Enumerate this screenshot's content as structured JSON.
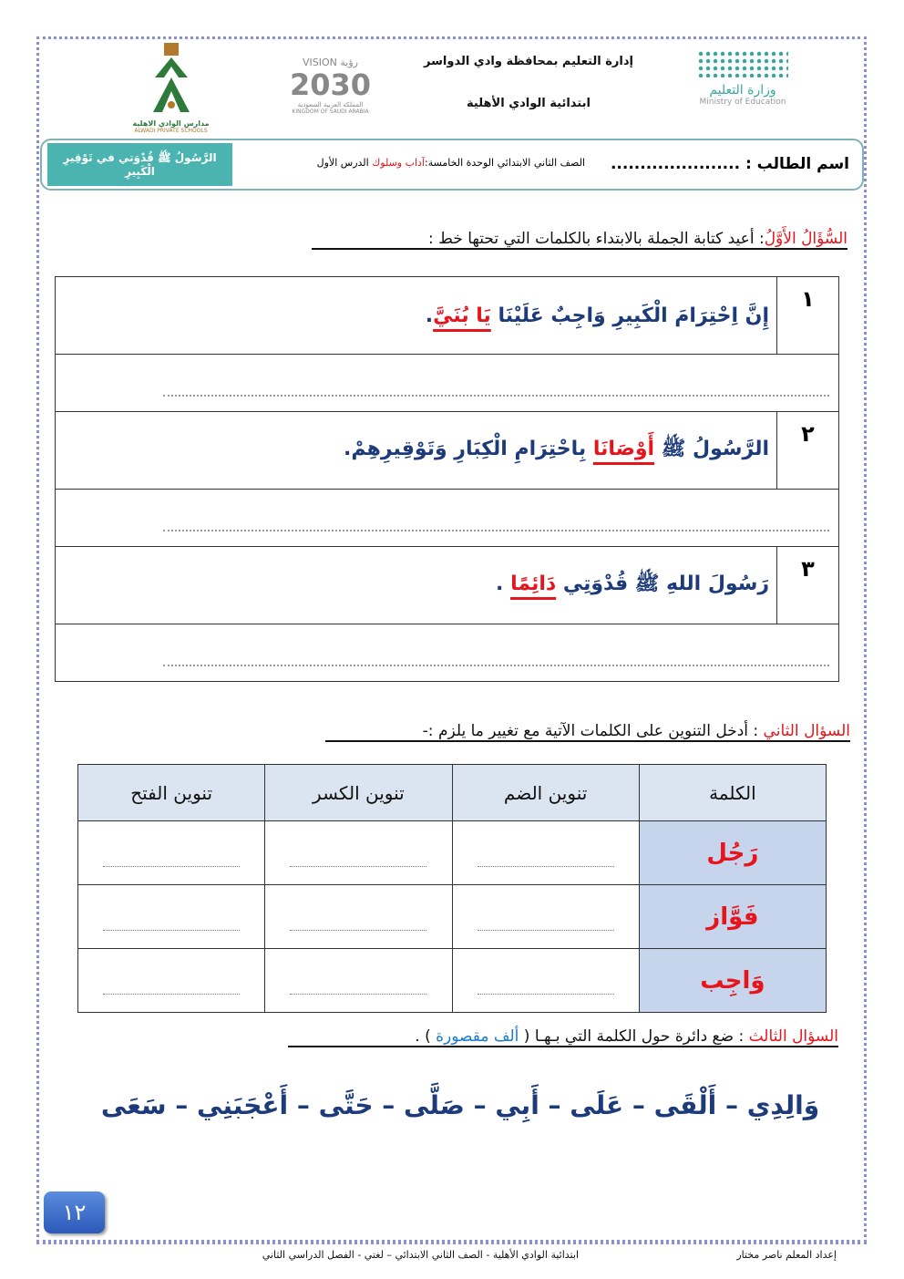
{
  "header": {
    "ministry_logo": {
      "arabic": "وزارة التعليم",
      "english": "Ministry of Education"
    },
    "line1": "إدارة التعليم بمحافظة وادي الدواسر",
    "line2": "ابتدائية الوادي الأهلية",
    "vision_logo": {
      "top": "VISION رؤية",
      "year": "2030",
      "bottom1": "المملكة العربية السعودية",
      "bottom2": "KINGDOM OF SAUDI ARABIA"
    },
    "school_logo": {
      "arabic": "مدارس الوادي الاهلية",
      "english": "ALWADI PRIVATE SCHOOLS"
    }
  },
  "info": {
    "student_label": "اسم الطالب :",
    "student_dots": "......................",
    "grade_unit": "الصف الثاني الابتدائي الوحدة الخامسة:",
    "unit_name": "آداب وسلوك",
    "lesson": "الدرس الأول",
    "lesson_title": "الرَّسُولُ ﷺ قُدْوَتي في تَوْقِيرِ الْكَبِيرِ"
  },
  "q1": {
    "label": "السُّؤَالُ الأَوَّلُ",
    "instruction": ": أعيد  كتابة الجملة بالابتداء بالكلمات التي تحتها خط :",
    "items": [
      {
        "num": "١",
        "before": "إِنَّ اِحْتِرَامَ الْكَبِيرِ وَاجِبٌ عَلَيْنَا ",
        "under": "يَا بُنَيَّ",
        "after": "."
      },
      {
        "num": "٢",
        "before": "الرَّسُولُ ﷺ ",
        "under": "أَوْصَانَا",
        "after": " بِاحْتِرَامِ الْكِبَارِ وَتَوْقِيرِهِمْ."
      },
      {
        "num": "٣",
        "before": "رَسُولَ اللهِ ﷺ قُدْوَتِي ",
        "under": "دَائِمًا",
        "after": " ."
      }
    ]
  },
  "q2": {
    "label": "السؤال الثاني",
    "instruction": " : أدخل التنوين على الكلمات الآتية مع تغيير ما يلزم :-",
    "headers": [
      "الكلمة",
      "تنوين الضم",
      "تنوين الكسر",
      "تنوين الفتح"
    ],
    "words": [
      "رَجُل",
      "فَوَّاز",
      "وَاجِب"
    ]
  },
  "q3": {
    "label": "السؤال الثالث",
    "instruction": " : ضع دائرة حول الكلمة التي بـهـا  ( ",
    "highlight": "ألف مقصورة",
    "end": " ) .",
    "words": "وَالِدِي – أَلْقَى – عَلَى  – أَبِي – صَلَّى  – حَتَّى – أَعْجَبَنِي – سَعَى"
  },
  "page_number": "١٢",
  "footer": {
    "author": "إعداد المعلم ناصر مختار",
    "info": "ابتدائية  الوادي الأهلية   - الصف الثاني الابتدائي – لغتي -  الفصل الدراسي الثاني"
  },
  "colors": {
    "accent_red": "#e8141c",
    "sentence_blue": "#1d3b7a",
    "teal": "#4bb3b0",
    "header_bg": "#dbe5f1",
    "word_bg": "#c7d5ec"
  }
}
